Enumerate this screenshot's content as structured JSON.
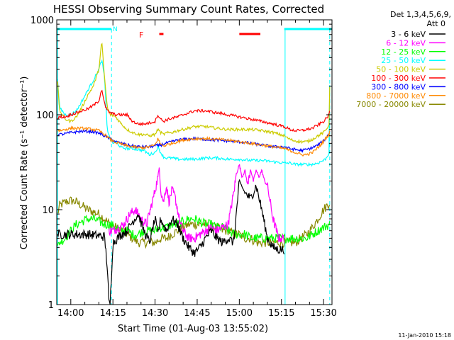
{
  "chart_data": {
    "type": "line",
    "title": "HESSI Observing Summary Count Rates, Corrected",
    "xlabel": "Start Time (01-Aug-03 13:55:02)",
    "ylabel": "Corrected Count Rate (s⁻¹ detector⁻¹)",
    "yscale": "log",
    "ylim": [
      1,
      1000
    ],
    "xlim_minutes_of_day": [
      835,
      933
    ],
    "x_ticks": [
      {
        "t": 840,
        "label": "14:00"
      },
      {
        "t": 855,
        "label": "14:15"
      },
      {
        "t": 870,
        "label": "14:30"
      },
      {
        "t": 885,
        "label": "14:45"
      },
      {
        "t": 900,
        "label": "15:00"
      },
      {
        "t": 915,
        "label": "15:15"
      },
      {
        "t": 930,
        "label": "15:30"
      }
    ],
    "y_ticks": [
      {
        "v": 1,
        "label": "1"
      },
      {
        "v": 10,
        "label": "10"
      },
      {
        "v": 100,
        "label": "100"
      },
      {
        "v": 1000,
        "label": "1000"
      }
    ],
    "grid": false,
    "legend": {
      "placement": "right",
      "header": [
        "Det 1,3,4,5,6,9,",
        "Att 0"
      ]
    },
    "annotations": {
      "night_label": "N",
      "flare_label": "F",
      "footer_date": "11-Jan-2010 15:18"
    },
    "markers": {
      "night_bars": [
        [
          835,
          854.5
        ],
        [
          916,
          933
        ]
      ],
      "night_vlines": [
        854.5,
        932.2
      ],
      "saa_vlines": [
        835.3,
        916.3
      ],
      "flare_bars": [
        [
          871.5,
          873
        ],
        [
          900,
          907.5
        ]
      ],
      "night_color": "#00ffff",
      "flare_color": "#ff0000"
    },
    "series": [
      {
        "name": "3 - 6 keV",
        "color": "#000000",
        "t": [
          835.3,
          846,
          852,
          853,
          853.6,
          854,
          855,
          858,
          860,
          862,
          864,
          866,
          868,
          870,
          871,
          872,
          874,
          876,
          878,
          880,
          882,
          884,
          886,
          888,
          890,
          892,
          894,
          896,
          898,
          900,
          902,
          904,
          906,
          908,
          910,
          912,
          914,
          916
        ],
        "v": [
          5.5,
          5.5,
          5.2,
          2.5,
          1,
          1,
          4.5,
          5.5,
          6,
          7.5,
          9,
          6,
          4.5,
          8,
          5.5,
          8,
          6,
          8,
          7,
          5,
          4,
          3.5,
          4,
          5,
          6,
          5,
          4.5,
          5,
          4.5,
          20,
          15,
          13,
          18,
          10,
          5,
          4,
          3.8,
          3.8
        ]
      },
      {
        "name": "6 - 12 keV",
        "color": "#ff00ff",
        "t": [
          853.6,
          855,
          857,
          859,
          861,
          863,
          865,
          867,
          869,
          870,
          871,
          871.5,
          872,
          873,
          874,
          875,
          876,
          877,
          878,
          879,
          880,
          882,
          884,
          886,
          888,
          890,
          892,
          894,
          896,
          898,
          899,
          900,
          901,
          902,
          903,
          904,
          905,
          906,
          907,
          908,
          909,
          910,
          912,
          914,
          916
        ],
        "v": [
          6,
          6,
          6.5,
          7,
          9,
          10,
          8,
          7,
          12,
          16,
          22,
          28,
          16,
          12,
          18,
          12,
          16,
          14,
          10,
          7,
          6,
          5,
          5,
          5.5,
          6,
          6.5,
          6,
          6.5,
          7,
          15,
          24,
          30,
          22,
          26,
          18,
          27,
          20,
          26,
          22,
          26,
          20,
          18,
          8,
          5,
          5
        ]
      },
      {
        "name": "12 - 25 keV",
        "color": "#00ff00",
        "t": [
          835.3,
          836,
          838,
          840,
          842,
          844,
          846,
          848,
          850,
          852,
          854,
          856,
          858,
          860,
          862,
          864,
          866,
          868,
          870,
          872,
          874,
          876,
          878,
          880,
          882,
          884,
          886,
          888,
          890,
          892,
          894,
          896,
          898,
          900,
          902,
          904,
          906,
          908,
          910,
          912,
          914,
          916,
          918,
          920,
          922,
          924,
          926,
          928,
          930,
          932.2
        ],
        "v": [
          4,
          4.5,
          5,
          6,
          7,
          7.5,
          8,
          8,
          7.5,
          7,
          7,
          6.5,
          6,
          6,
          5.5,
          5.5,
          6,
          6,
          6,
          6.5,
          6.5,
          7,
          7,
          7.5,
          8,
          8,
          7.5,
          7,
          7,
          6.5,
          6.5,
          6,
          5.5,
          5.5,
          5.5,
          5,
          5,
          5,
          5,
          5,
          5,
          5,
          5,
          5,
          5,
          5,
          5.5,
          6,
          6.5,
          7
        ]
      },
      {
        "name": "25 - 50 keV",
        "color": "#00ffff",
        "t": [
          835.3,
          836,
          838,
          840,
          842,
          844,
          846,
          848,
          850,
          851,
          852,
          853,
          854,
          855,
          856,
          858,
          860,
          862,
          864,
          866,
          868,
          870,
          871,
          872,
          873,
          874,
          876,
          878,
          880,
          884,
          888,
          892,
          896,
          900,
          904,
          908,
          912,
          916,
          918,
          920,
          922,
          924,
          926,
          928,
          930,
          931,
          932,
          932.2
        ],
        "v": [
          230,
          120,
          100,
          100,
          110,
          140,
          180,
          230,
          300,
          380,
          250,
          70,
          55,
          50,
          52,
          45,
          44,
          44,
          43,
          42,
          38,
          40,
          46,
          40,
          36,
          35,
          35,
          34,
          34,
          34,
          35,
          35,
          34,
          34,
          33,
          33,
          32,
          31,
          31,
          30,
          30,
          30,
          30,
          31,
          33,
          35,
          40,
          210
        ]
      },
      {
        "name": "50 - 100 keV",
        "color": "#cccc00",
        "t": [
          835.3,
          836,
          838,
          840,
          842,
          844,
          846,
          848,
          850,
          851,
          852,
          853,
          854,
          855,
          856,
          858,
          860,
          862,
          864,
          866,
          868,
          870,
          871,
          872,
          873,
          874,
          876,
          878,
          880,
          884,
          888,
          892,
          896,
          900,
          904,
          908,
          912,
          916,
          918,
          920,
          922,
          924,
          926,
          928,
          930,
          931,
          932,
          932.2
        ],
        "v": [
          220,
          110,
          90,
          85,
          95,
          120,
          160,
          200,
          300,
          600,
          250,
          120,
          100,
          98,
          95,
          80,
          70,
          65,
          62,
          62,
          60,
          62,
          70,
          65,
          62,
          64,
          65,
          68,
          70,
          75,
          75,
          72,
          70,
          70,
          70,
          68,
          65,
          60,
          55,
          53,
          52,
          52,
          55,
          60,
          65,
          70,
          80,
          190
        ]
      },
      {
        "name": "100 - 300 keV",
        "color": "#ff0000",
        "t": [
          835.3,
          836,
          838,
          840,
          842,
          844,
          846,
          848,
          850,
          851,
          852,
          853,
          854,
          856,
          858,
          860,
          862,
          864,
          866,
          868,
          870,
          871,
          872,
          873,
          874,
          876,
          878,
          880,
          884,
          888,
          892,
          896,
          900,
          904,
          908,
          912,
          916,
          918,
          920,
          922,
          924,
          926,
          928,
          930,
          931,
          932,
          932.2
        ],
        "v": [
          90,
          95,
          95,
          100,
          105,
          110,
          115,
          125,
          140,
          190,
          130,
          110,
          105,
          100,
          100,
          100,
          85,
          80,
          80,
          82,
          85,
          100,
          90,
          85,
          88,
          92,
          95,
          100,
          110,
          110,
          105,
          100,
          95,
          90,
          85,
          80,
          75,
          70,
          68,
          68,
          70,
          72,
          78,
          85,
          92,
          100,
          110
        ]
      },
      {
        "name": "300 - 800 keV",
        "color": "#0000ff",
        "t": [
          835.3,
          836,
          838,
          840,
          842,
          844,
          846,
          848,
          850,
          852,
          854,
          856,
          858,
          860,
          862,
          864,
          866,
          868,
          870,
          872,
          874,
          876,
          878,
          880,
          884,
          888,
          892,
          896,
          900,
          904,
          908,
          912,
          916,
          918,
          920,
          922,
          924,
          926,
          928,
          930,
          931,
          932,
          932.2
        ],
        "v": [
          62,
          62,
          63,
          65,
          66,
          67,
          67,
          66,
          64,
          60,
          56,
          52,
          50,
          48,
          47,
          46,
          46,
          46,
          47,
          48,
          50,
          52,
          54,
          55,
          56,
          55,
          54,
          53,
          52,
          50,
          48,
          46,
          46,
          44,
          43,
          42,
          43,
          45,
          48,
          53,
          58,
          63,
          68
        ]
      },
      {
        "name": "800 - 7000 keV",
        "color": "#ff8800",
        "t": [
          835.3,
          836,
          838,
          840,
          842,
          844,
          846,
          848,
          850,
          852,
          854,
          856,
          858,
          860,
          862,
          864,
          866,
          868,
          870,
          871,
          872,
          873,
          874,
          876,
          878,
          880,
          884,
          888,
          892,
          896,
          900,
          904,
          908,
          912,
          916,
          918,
          920,
          922,
          924,
          926,
          928,
          930,
          931,
          932,
          932.2
        ],
        "v": [
          68,
          68,
          70,
          72,
          72,
          72,
          71,
          70,
          68,
          62,
          55,
          51,
          49,
          47,
          46,
          45,
          45,
          46,
          48,
          56,
          49,
          47,
          48,
          50,
          52,
          54,
          56,
          56,
          55,
          54,
          52,
          50,
          48,
          46,
          44,
          42,
          40,
          38,
          38,
          40,
          45,
          52,
          58,
          62,
          70
        ]
      },
      {
        "name": "7000 - 20000 keV",
        "color": "#888800",
        "t": [
          835.3,
          836,
          838,
          840,
          842,
          844,
          846,
          848,
          850,
          852,
          854,
          856,
          858,
          860,
          862,
          864,
          866,
          868,
          870,
          872,
          874,
          876,
          878,
          880,
          882,
          884,
          886,
          888,
          890,
          892,
          894,
          896,
          898,
          900,
          902,
          904,
          906,
          908,
          910,
          912,
          914,
          916,
          918,
          920,
          922,
          924,
          926,
          928,
          930,
          932.2
        ],
        "v": [
          9,
          11,
          12,
          12.5,
          12,
          11,
          10,
          9.5,
          9,
          8,
          7,
          6.5,
          6,
          5.5,
          5,
          4.5,
          4.5,
          4.5,
          4.5,
          5,
          5,
          5.5,
          6,
          6.5,
          7,
          7,
          7,
          7,
          6.5,
          6.5,
          6,
          6,
          5.5,
          5.5,
          5,
          5,
          4.5,
          4.5,
          4.5,
          4.5,
          4.5,
          4.5,
          4.5,
          4.5,
          5,
          5.5,
          6.5,
          8,
          10,
          12
        ]
      }
    ]
  }
}
